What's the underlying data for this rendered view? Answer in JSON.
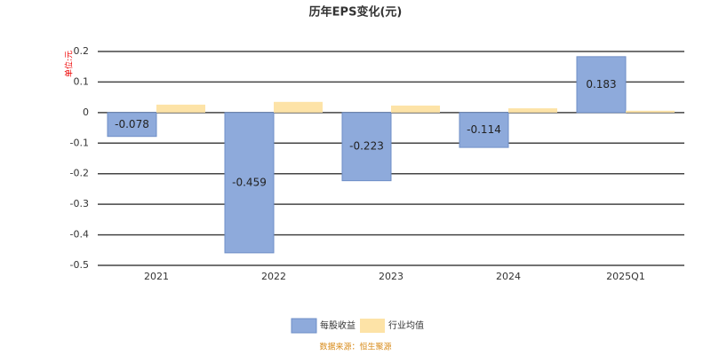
{
  "chart_data": {
    "type": "bar",
    "title": "历年EPS变化(元)",
    "y_label": "单位:元",
    "source": "数据来源：恒生聚源",
    "categories": [
      "2021",
      "2022",
      "2023",
      "2024",
      "2025Q1"
    ],
    "series": [
      {
        "name": "每股收益",
        "color": "#8eaadb",
        "values": [
          -0.078,
          -0.459,
          -0.223,
          -0.114,
          0.183
        ],
        "labels": true
      },
      {
        "name": "行业均值",
        "color": "#fde3a7",
        "values": [
          0.026,
          0.035,
          0.023,
          0.014,
          0.006
        ],
        "labels": false
      }
    ],
    "ylim": [
      -0.5,
      0.2
    ],
    "yticks": [
      -0.5,
      -0.4,
      -0.3,
      -0.2,
      -0.1,
      0,
      0.1,
      0.2
    ],
    "grid": true
  }
}
